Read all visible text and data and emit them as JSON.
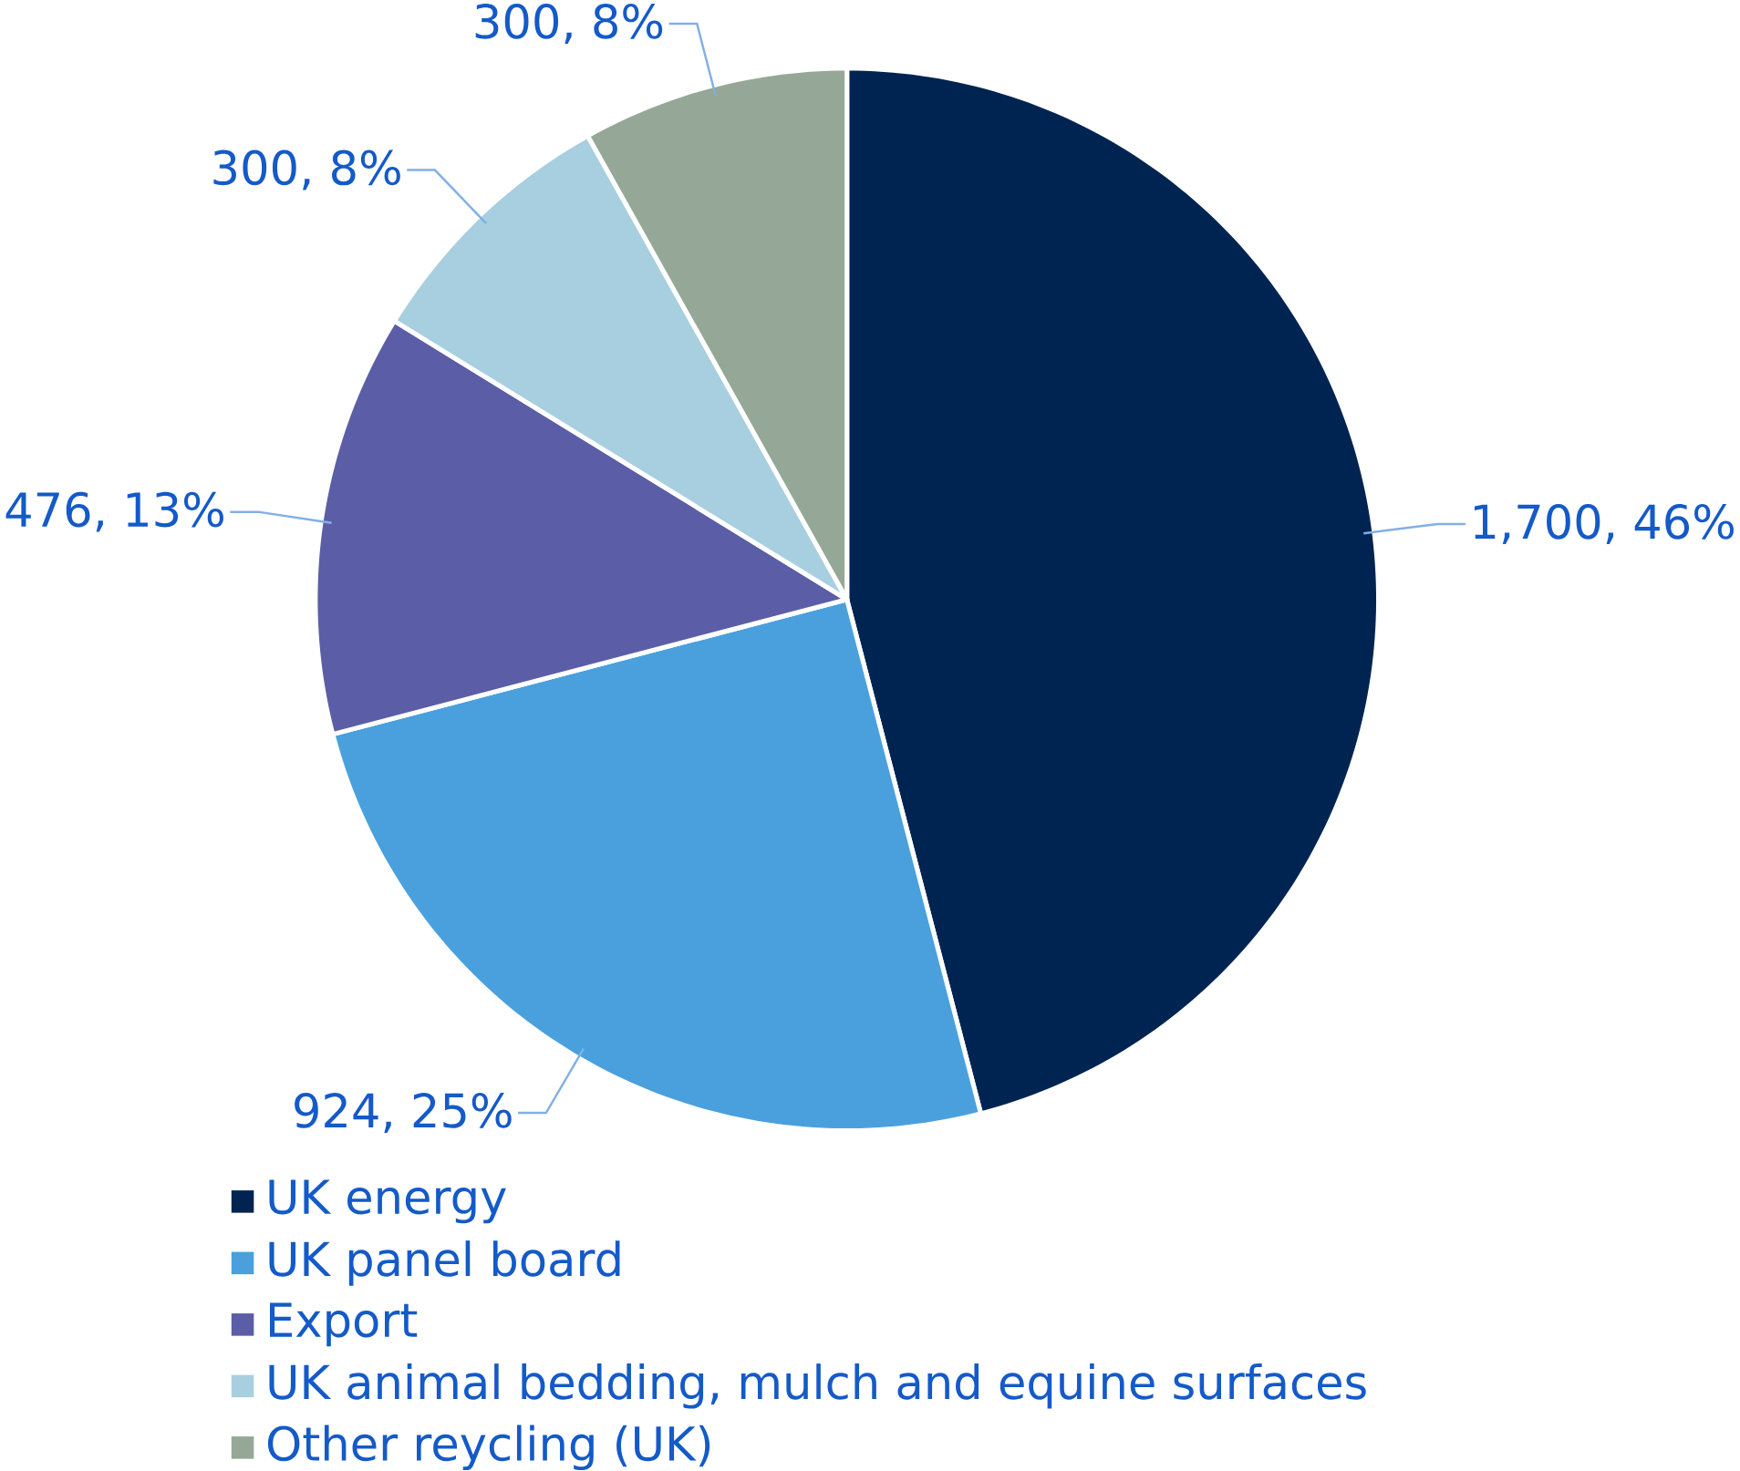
{
  "chart_data": {
    "type": "pie",
    "categories": [
      "UK energy",
      "UK panel board",
      "Export",
      "UK animal bedding, mulch and equine surfaces",
      "Other reycling (UK)"
    ],
    "values": [
      1700,
      924,
      476,
      300,
      300
    ],
    "colors": [
      "#002452",
      "#4aa0dd",
      "#5b5ea6",
      "#a8cfe0",
      "#95a897"
    ],
    "value_labels": [
      "1,700, 46%",
      "924, 25%",
      "476, 13%",
      "300, 8%",
      "300, 8%"
    ],
    "legend": "bottom left"
  }
}
